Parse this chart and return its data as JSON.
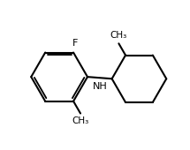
{
  "background_color": "#ffffff",
  "line_color": "#000000",
  "line_width": 1.5,
  "font_size": 8,
  "label_F": "F",
  "label_NH": "NH",
  "label_CH3": "CH₃",
  "figsize": [
    2.15,
    1.7
  ],
  "dpi": 100
}
